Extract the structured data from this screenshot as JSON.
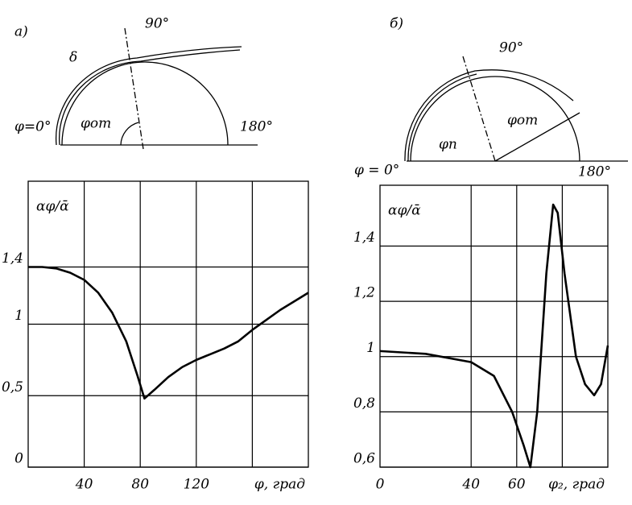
{
  "chart_data": [
    {
      "type": "line",
      "panel_label": "а)",
      "y_label": "αφ/ᾱ",
      "x_label": "φ, град",
      "x": [
        0,
        10,
        20,
        30,
        40,
        50,
        60,
        70,
        78,
        83,
        90,
        100,
        110,
        120,
        130,
        140,
        150,
        160,
        170,
        180,
        190,
        200
      ],
      "series": [
        {
          "color": "#000000",
          "values": [
            1.4,
            1.4,
            1.39,
            1.36,
            1.31,
            1.22,
            1.08,
            0.88,
            0.64,
            0.48,
            0.54,
            0.63,
            0.7,
            0.75,
            0.79,
            0.83,
            0.88,
            0.96,
            1.03,
            1.1,
            1.16,
            1.22
          ]
        }
      ],
      "xlim": [
        0,
        200
      ],
      "ylim": [
        0,
        2
      ],
      "xticks": [
        40,
        80,
        120
      ],
      "xgrid": [
        40,
        80,
        120,
        160
      ],
      "yticks": [
        0,
        {
          "value": 0.5,
          "label": "0,5"
        },
        1,
        {
          "value": 1.4,
          "label": "1,4"
        }
      ],
      "grid": true
    },
    {
      "type": "line",
      "panel_label": "б)",
      "y_label": "αφ/ᾱ",
      "x_label": "φ₂, град",
      "x": [
        0,
        20,
        40,
        50,
        58,
        63,
        66,
        69,
        73,
        76,
        78,
        81,
        86,
        90,
        94,
        97,
        100
      ],
      "series": [
        {
          "color": "#000000",
          "values": [
            1.02,
            1.01,
            0.98,
            0.93,
            0.8,
            0.68,
            0.6,
            0.8,
            1.3,
            1.55,
            1.52,
            1.3,
            1.0,
            0.9,
            0.86,
            0.9,
            1.04
          ]
        }
      ],
      "xlim": [
        0,
        100
      ],
      "ylim": [
        0.6,
        1.62
      ],
      "xticks": [
        0,
        40,
        60
      ],
      "xgrid": [
        40,
        60,
        80
      ],
      "yticks": [
        {
          "value": 0.6,
          "label": "0,6"
        },
        {
          "value": 0.8,
          "label": "0,8"
        },
        1,
        {
          "value": 1.2,
          "label": "1,2"
        },
        {
          "value": 1.4,
          "label": "1,4"
        }
      ],
      "grid": true
    }
  ],
  "diagrams": {
    "left": {
      "top": "90°",
      "delta": "δ",
      "start": "φ=0°",
      "separation": "φот",
      "end": "180°"
    },
    "right": {
      "top": "90°",
      "transition": "φп",
      "separation": "φот",
      "start": "φ = 0°",
      "end": "180°"
    }
  }
}
